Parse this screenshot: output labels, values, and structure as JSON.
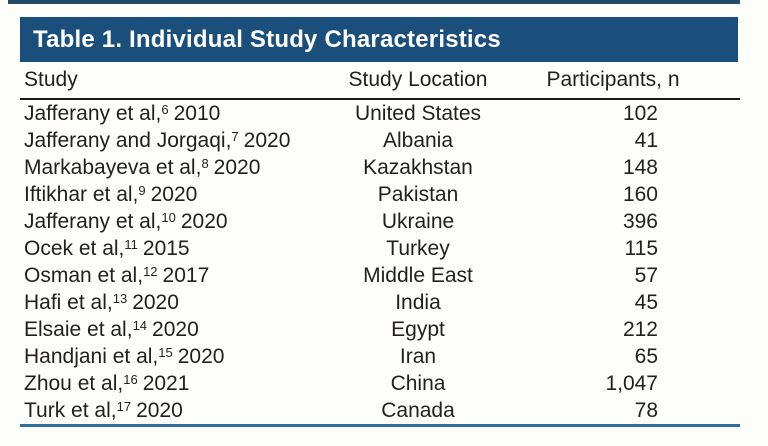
{
  "title_bar": {
    "title": "Table 1. Individual Study Characteristics"
  },
  "colors": {
    "title_bar_bg": "#1a4f7b",
    "title_text": "#ffffff",
    "top_rule": "#254b66",
    "header_rule": "#1a1a1a",
    "bottom_rule": "#2e6d9f",
    "body_text": "#231f20",
    "background": "#fdfdfa"
  },
  "table": {
    "columns": {
      "study": "Study",
      "location": "Study Location",
      "participants": "Participants, n"
    },
    "rows": [
      {
        "study": "Jafferany et al,",
        "ref": "6",
        "year": "2010",
        "location": "United States",
        "participants": "102"
      },
      {
        "study": "Jafferany and Jorgaqi,",
        "ref": "7",
        "year": "2020",
        "location": "Albania",
        "participants": "41"
      },
      {
        "study": "Markabayeva et al,",
        "ref": "8",
        "year": "2020",
        "location": "Kazakhstan",
        "participants": "148"
      },
      {
        "study": "Iftikhar et al,",
        "ref": "9",
        "year": "2020",
        "location": "Pakistan",
        "participants": "160"
      },
      {
        "study": "Jafferany et al,",
        "ref": "10",
        "year": "2020",
        "location": "Ukraine",
        "participants": "396"
      },
      {
        "study": "Ocek et al,",
        "ref": "11",
        "year": "2015",
        "location": "Turkey",
        "participants": "115"
      },
      {
        "study": "Osman et al,",
        "ref": "12",
        "year": "2017",
        "location": "Middle East",
        "participants": "57"
      },
      {
        "study": "Hafi et al,",
        "ref": "13",
        "year": "2020",
        "location": "India",
        "participants": "45"
      },
      {
        "study": "Elsaie et al,",
        "ref": "14",
        "year": "2020",
        "location": "Egypt",
        "participants": "212"
      },
      {
        "study": "Handjani et al,",
        "ref": "15",
        "year": "2020",
        "location": "Iran",
        "participants": "65"
      },
      {
        "study": "Zhou et al,",
        "ref": "16",
        "year": "2021",
        "location": "China",
        "participants": "1,047"
      },
      {
        "study": "Turk et al,",
        "ref": "17",
        "year": "2020",
        "location": "Canada",
        "participants": "78"
      }
    ]
  }
}
